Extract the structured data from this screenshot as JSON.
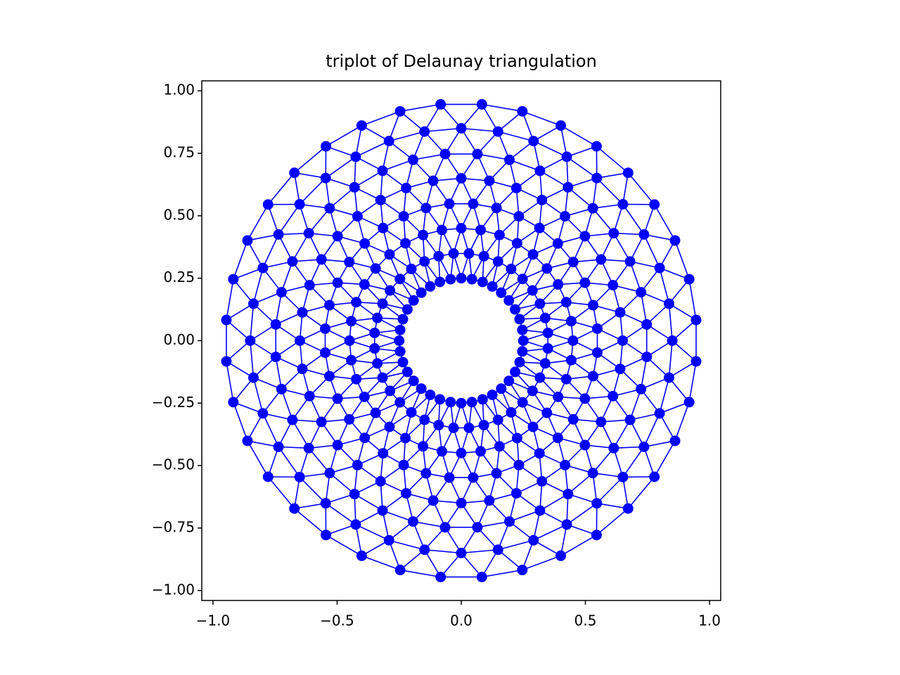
{
  "chart_data": {
    "type": "triplot",
    "title": "triplot of Delaunay triangulation",
    "color": "#0000ff",
    "xlim": [
      -1.045,
      1.045
    ],
    "ylim": [
      -1.04,
      1.04
    ],
    "xticks": [
      {
        "value": -1,
        "label": "−1.0"
      },
      {
        "value": -0.5,
        "label": "−0.5"
      },
      {
        "value": 0,
        "label": "0.0"
      },
      {
        "value": 0.5,
        "label": "0.5"
      },
      {
        "value": 1,
        "label": "1.0"
      }
    ],
    "yticks": [
      {
        "value": -1,
        "label": "−1.00"
      },
      {
        "value": -0.75,
        "label": "−0.75"
      },
      {
        "value": -0.5,
        "label": "−0.50"
      },
      {
        "value": -0.25,
        "label": "−0.25"
      },
      {
        "value": 0,
        "label": "0.00"
      },
      {
        "value": 0.25,
        "label": "0.25"
      },
      {
        "value": 0.5,
        "label": "0.50"
      },
      {
        "value": 0.75,
        "label": "0.75"
      },
      {
        "value": 1,
        "label": "1.00"
      }
    ],
    "x": [
      0.25,
      0.246,
      0.235,
      0.217,
      0.192,
      0.161,
      0.125,
      0.086,
      0.043,
      0,
      -0.043,
      -0.086,
      -0.125,
      -0.161,
      -0.192,
      -0.217,
      -0.235,
      -0.246,
      -0.25,
      -0.246,
      -0.235,
      -0.217,
      -0.192,
      -0.161,
      -0.125,
      -0.086,
      -0.043,
      0,
      0.043,
      0.086,
      0.125,
      0.161,
      0.192,
      0.217,
      0.235,
      0.246,
      0.349,
      0.338,
      0.317,
      0.287,
      0.247,
      0.201,
      0.148,
      0.091,
      0.031,
      -0.031,
      -0.091,
      -0.148,
      -0.201,
      -0.247,
      -0.287,
      -0.317,
      -0.338,
      -0.349,
      -0.349,
      -0.338,
      -0.317,
      -0.287,
      -0.247,
      -0.201,
      -0.148,
      -0.091,
      -0.031,
      0.031,
      0.091,
      0.148,
      0.201,
      0.247,
      0.287,
      0.317,
      0.338,
      0.349,
      0.45,
      0.443,
      0.423,
      0.39,
      0.345,
      0.289,
      0.225,
      0.154,
      0.078,
      0,
      -0.078,
      -0.154,
      -0.225,
      -0.289,
      -0.345,
      -0.39,
      -0.423,
      -0.443,
      -0.45,
      -0.443,
      -0.423,
      -0.39,
      -0.345,
      -0.289,
      -0.225,
      -0.154,
      -0.078,
      0,
      0.078,
      0.154,
      0.225,
      0.289,
      0.345,
      0.39,
      0.423,
      0.443,
      0.548,
      0.531,
      0.498,
      0.451,
      0.389,
      0.315,
      0.232,
      0.142,
      0.048,
      -0.048,
      -0.142,
      -0.232,
      -0.315,
      -0.389,
      -0.451,
      -0.498,
      -0.531,
      -0.548,
      -0.548,
      -0.531,
      -0.498,
      -0.451,
      -0.389,
      -0.315,
      -0.232,
      -0.142,
      -0.048,
      0.048,
      0.142,
      0.232,
      0.315,
      0.389,
      0.451,
      0.498,
      0.531,
      0.548,
      0.65,
      0.64,
      0.611,
      0.563,
      0.498,
      0.418,
      0.325,
      0.222,
      0.113,
      0,
      -0.113,
      -0.222,
      -0.325,
      -0.418,
      -0.498,
      -0.563,
      -0.611,
      -0.64,
      -0.65,
      -0.64,
      -0.611,
      -0.563,
      -0.498,
      -0.418,
      -0.325,
      -0.222,
      -0.113,
      0,
      0.113,
      0.222,
      0.325,
      0.418,
      0.498,
      0.563,
      0.611,
      0.64,
      0.747,
      0.724,
      0.68,
      0.614,
      0.53,
      0.43,
      0.317,
      0.194,
      0.065,
      -0.065,
      -0.194,
      -0.317,
      -0.43,
      -0.53,
      -0.614,
      -0.68,
      -0.724,
      -0.747,
      -0.747,
      -0.724,
      -0.68,
      -0.614,
      -0.53,
      -0.43,
      -0.317,
      -0.194,
      -0.065,
      0.065,
      0.194,
      0.317,
      0.43,
      0.53,
      0.614,
      0.68,
      0.724,
      0.747,
      0.85,
      0.837,
      0.799,
      0.736,
      0.651,
      0.546,
      0.425,
      0.291,
      0.148,
      0,
      -0.148,
      -0.291,
      -0.425,
      -0.546,
      -0.651,
      -0.736,
      -0.799,
      -0.837,
      -0.85,
      -0.837,
      -0.799,
      -0.736,
      -0.651,
      -0.546,
      -0.425,
      -0.291,
      -0.148,
      0,
      0.148,
      0.291,
      0.425,
      0.546,
      0.651,
      0.736,
      0.799,
      0.837,
      0.946,
      0.918,
      0.861,
      0.778,
      0.672,
      0.545,
      0.401,
      0.246,
      0.083,
      -0.083,
      -0.246,
      -0.401,
      -0.545,
      -0.672,
      -0.778,
      -0.861,
      -0.918,
      -0.946,
      -0.946,
      -0.918,
      -0.861,
      -0.778,
      -0.672,
      -0.545,
      -0.401,
      -0.246,
      -0.083,
      0.083,
      0.246,
      0.401,
      0.545,
      0.672,
      0.778,
      0.861,
      0.918,
      0.946
    ],
    "y": [
      0,
      0.043,
      0.086,
      0.125,
      0.161,
      0.192,
      0.217,
      0.235,
      0.246,
      0.25,
      0.246,
      0.235,
      0.217,
      0.192,
      0.161,
      0.125,
      0.086,
      0.043,
      0,
      -0.043,
      -0.086,
      -0.125,
      -0.161,
      -0.192,
      -0.217,
      -0.235,
      -0.246,
      -0.25,
      -0.246,
      -0.235,
      -0.217,
      -0.192,
      -0.161,
      -0.125,
      -0.086,
      -0.043,
      0.031,
      0.091,
      0.148,
      0.201,
      0.247,
      0.287,
      0.317,
      0.338,
      0.349,
      0.349,
      0.338,
      0.317,
      0.287,
      0.247,
      0.201,
      0.148,
      0.091,
      0.031,
      -0.031,
      -0.091,
      -0.148,
      -0.201,
      -0.247,
      -0.287,
      -0.317,
      -0.338,
      -0.349,
      -0.349,
      -0.338,
      -0.317,
      -0.287,
      -0.247,
      -0.201,
      -0.148,
      -0.091,
      -0.031,
      0,
      0.078,
      0.154,
      0.225,
      0.289,
      0.345,
      0.39,
      0.423,
      0.443,
      0.45,
      0.443,
      0.423,
      0.39,
      0.345,
      0.289,
      0.225,
      0.154,
      0.078,
      0,
      -0.078,
      -0.154,
      -0.225,
      -0.289,
      -0.345,
      -0.39,
      -0.423,
      -0.443,
      -0.45,
      -0.443,
      -0.423,
      -0.39,
      -0.345,
      -0.289,
      -0.225,
      -0.154,
      -0.078,
      0.048,
      0.142,
      0.232,
      0.315,
      0.389,
      0.451,
      0.498,
      0.531,
      0.548,
      0.548,
      0.531,
      0.498,
      0.451,
      0.389,
      0.315,
      0.232,
      0.142,
      0.048,
      -0.048,
      -0.142,
      -0.232,
      -0.315,
      -0.389,
      -0.451,
      -0.498,
      -0.531,
      -0.548,
      -0.548,
      -0.531,
      -0.498,
      -0.451,
      -0.389,
      -0.315,
      -0.232,
      -0.142,
      -0.048,
      0,
      0.113,
      0.222,
      0.325,
      0.418,
      0.498,
      0.563,
      0.611,
      0.64,
      0.65,
      0.64,
      0.611,
      0.563,
      0.498,
      0.418,
      0.325,
      0.222,
      0.113,
      0,
      -0.113,
      -0.222,
      -0.325,
      -0.418,
      -0.498,
      -0.563,
      -0.611,
      -0.64,
      -0.65,
      -0.64,
      -0.611,
      -0.563,
      -0.498,
      -0.418,
      -0.325,
      -0.222,
      -0.113,
      0.065,
      0.194,
      0.317,
      0.43,
      0.53,
      0.614,
      0.68,
      0.724,
      0.747,
      0.747,
      0.724,
      0.68,
      0.614,
      0.53,
      0.43,
      0.317,
      0.194,
      0.065,
      -0.065,
      -0.194,
      -0.317,
      -0.43,
      -0.53,
      -0.614,
      -0.68,
      -0.724,
      -0.747,
      -0.747,
      -0.724,
      -0.68,
      -0.614,
      -0.53,
      -0.43,
      -0.317,
      -0.194,
      -0.065,
      0,
      0.148,
      0.291,
      0.425,
      0.546,
      0.651,
      0.736,
      0.799,
      0.837,
      0.85,
      0.837,
      0.799,
      0.736,
      0.651,
      0.546,
      0.425,
      0.291,
      0.148,
      0,
      -0.148,
      -0.291,
      -0.425,
      -0.546,
      -0.651,
      -0.736,
      -0.799,
      -0.837,
      -0.85,
      -0.837,
      -0.799,
      -0.736,
      -0.651,
      -0.546,
      -0.425,
      -0.291,
      -0.148,
      0.083,
      0.246,
      0.401,
      0.545,
      0.672,
      0.778,
      0.861,
      0.918,
      0.946,
      0.946,
      0.918,
      0.861,
      0.778,
      0.672,
      0.545,
      0.401,
      0.246,
      0.083,
      -0.083,
      -0.246,
      -0.401,
      -0.545,
      -0.672,
      -0.778,
      -0.861,
      -0.918,
      -0.946,
      -0.946,
      -0.918,
      -0.861,
      -0.778,
      -0.672,
      -0.545,
      -0.401,
      -0.246,
      -0.083
    ]
  }
}
